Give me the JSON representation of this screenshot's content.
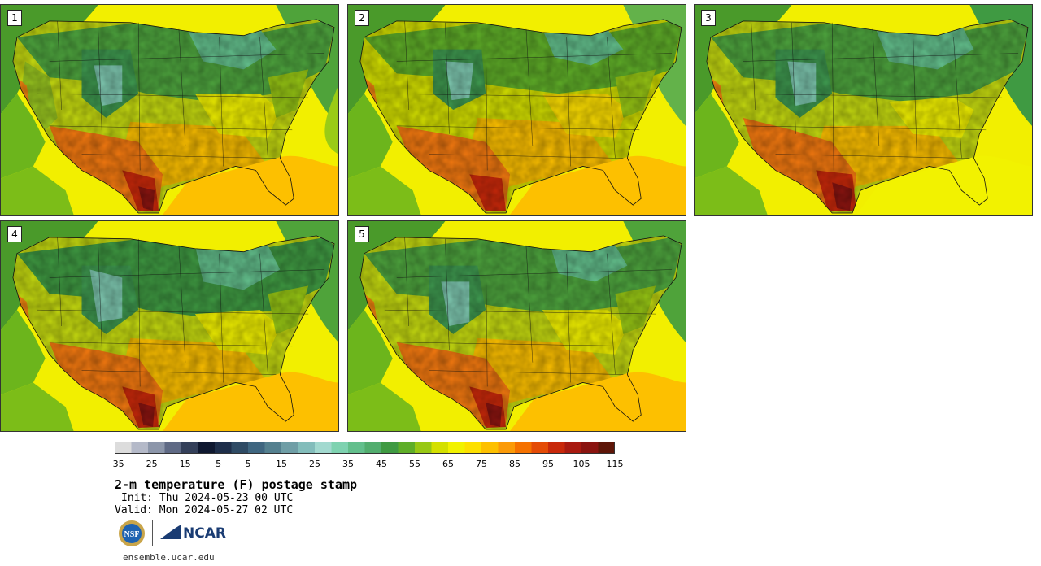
{
  "panels": [
    {
      "label": "1"
    },
    {
      "label": "2"
    },
    {
      "label": "3"
    },
    {
      "label": "4"
    },
    {
      "label": "5"
    }
  ],
  "colorbar": {
    "colors": [
      "#dcdcdc",
      "#b4b9c8",
      "#8c96aa",
      "#5f6a85",
      "#34405a",
      "#0f1830",
      "#1e2e4a",
      "#2f4b65",
      "#3f6680",
      "#54808f",
      "#6f9ea6",
      "#83bdbb",
      "#a2d9cf",
      "#7ed2b0",
      "#63bf8c",
      "#52ad6e",
      "#3f9a42",
      "#5fae28",
      "#98c814",
      "#d4e000",
      "#f2f200",
      "#fde000",
      "#fdc000",
      "#fb9a08",
      "#f57100",
      "#e44b06",
      "#c8280a",
      "#a81a10",
      "#8a1410",
      "#5e1608"
    ],
    "tick_labels": [
      "−35",
      "−25",
      "−15",
      "−5",
      "5",
      "15",
      "25",
      "35",
      "45",
      "55",
      "65",
      "75",
      "85",
      "95",
      "105",
      "115"
    ]
  },
  "title": "2-m temperature (F) postage stamp",
  "init_label": "Init: Thu 2024-05-23 00 UTC",
  "valid_label": "Valid: Mon 2024-05-27 02 UTC",
  "logos": {
    "nsf": "NSF",
    "ncar": "NCAR"
  },
  "website": "ensemble.ucar.edu"
}
